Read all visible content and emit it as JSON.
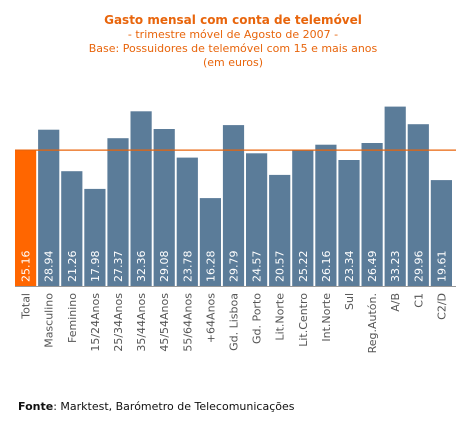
{
  "chart_data": {
    "type": "bar",
    "title": "Gasto mensal com conta de telemóvel",
    "subtitle_lines": [
      "- trimestre móvel de Agosto de 2007 -",
      "Base: Possuidores de telemóvel com 15 e mais anos",
      "(em euros)"
    ],
    "categories": [
      "Total",
      "Masculino",
      "Feminino",
      "15/24Anos",
      "25/34Anos",
      "35/44Anos",
      "45/54Anos",
      "55/64Anos",
      "+64Anos",
      "Gd. Lisboa",
      "Gd. Porto",
      "Lit.Norte",
      "Lit.Centro",
      "Int.Norte",
      "Sul",
      "Reg.Autón.",
      "A/B",
      "C1",
      "C2/D"
    ],
    "values": [
      25.16,
      28.94,
      21.26,
      17.98,
      27.37,
      32.36,
      29.08,
      23.78,
      16.28,
      29.79,
      24.57,
      20.57,
      25.22,
      26.16,
      23.34,
      26.49,
      33.23,
      29.96,
      19.61
    ],
    "value_labels": [
      "25.16",
      "28.94",
      "21.26",
      "17.98",
      "27.37",
      "32.36",
      "29.08",
      "23.78",
      "16.28",
      "29.79",
      "24.57",
      "20.57",
      "25.22",
      "26.16",
      "23.34",
      "26.49",
      "33.23",
      "29.96",
      "19.61"
    ],
    "reference_line_value": 25.16,
    "highlight_index": 0,
    "ylim": [
      0,
      35
    ],
    "grid": false,
    "colors": {
      "bar": "#5b7c99",
      "highlight": "#ff6600",
      "reference_line": "#e8650c",
      "title": "#e8650c",
      "axis": "#999999"
    }
  },
  "source": {
    "label": "Fonte",
    "text": ": Marktest, Barómetro de Telecomunicações"
  }
}
